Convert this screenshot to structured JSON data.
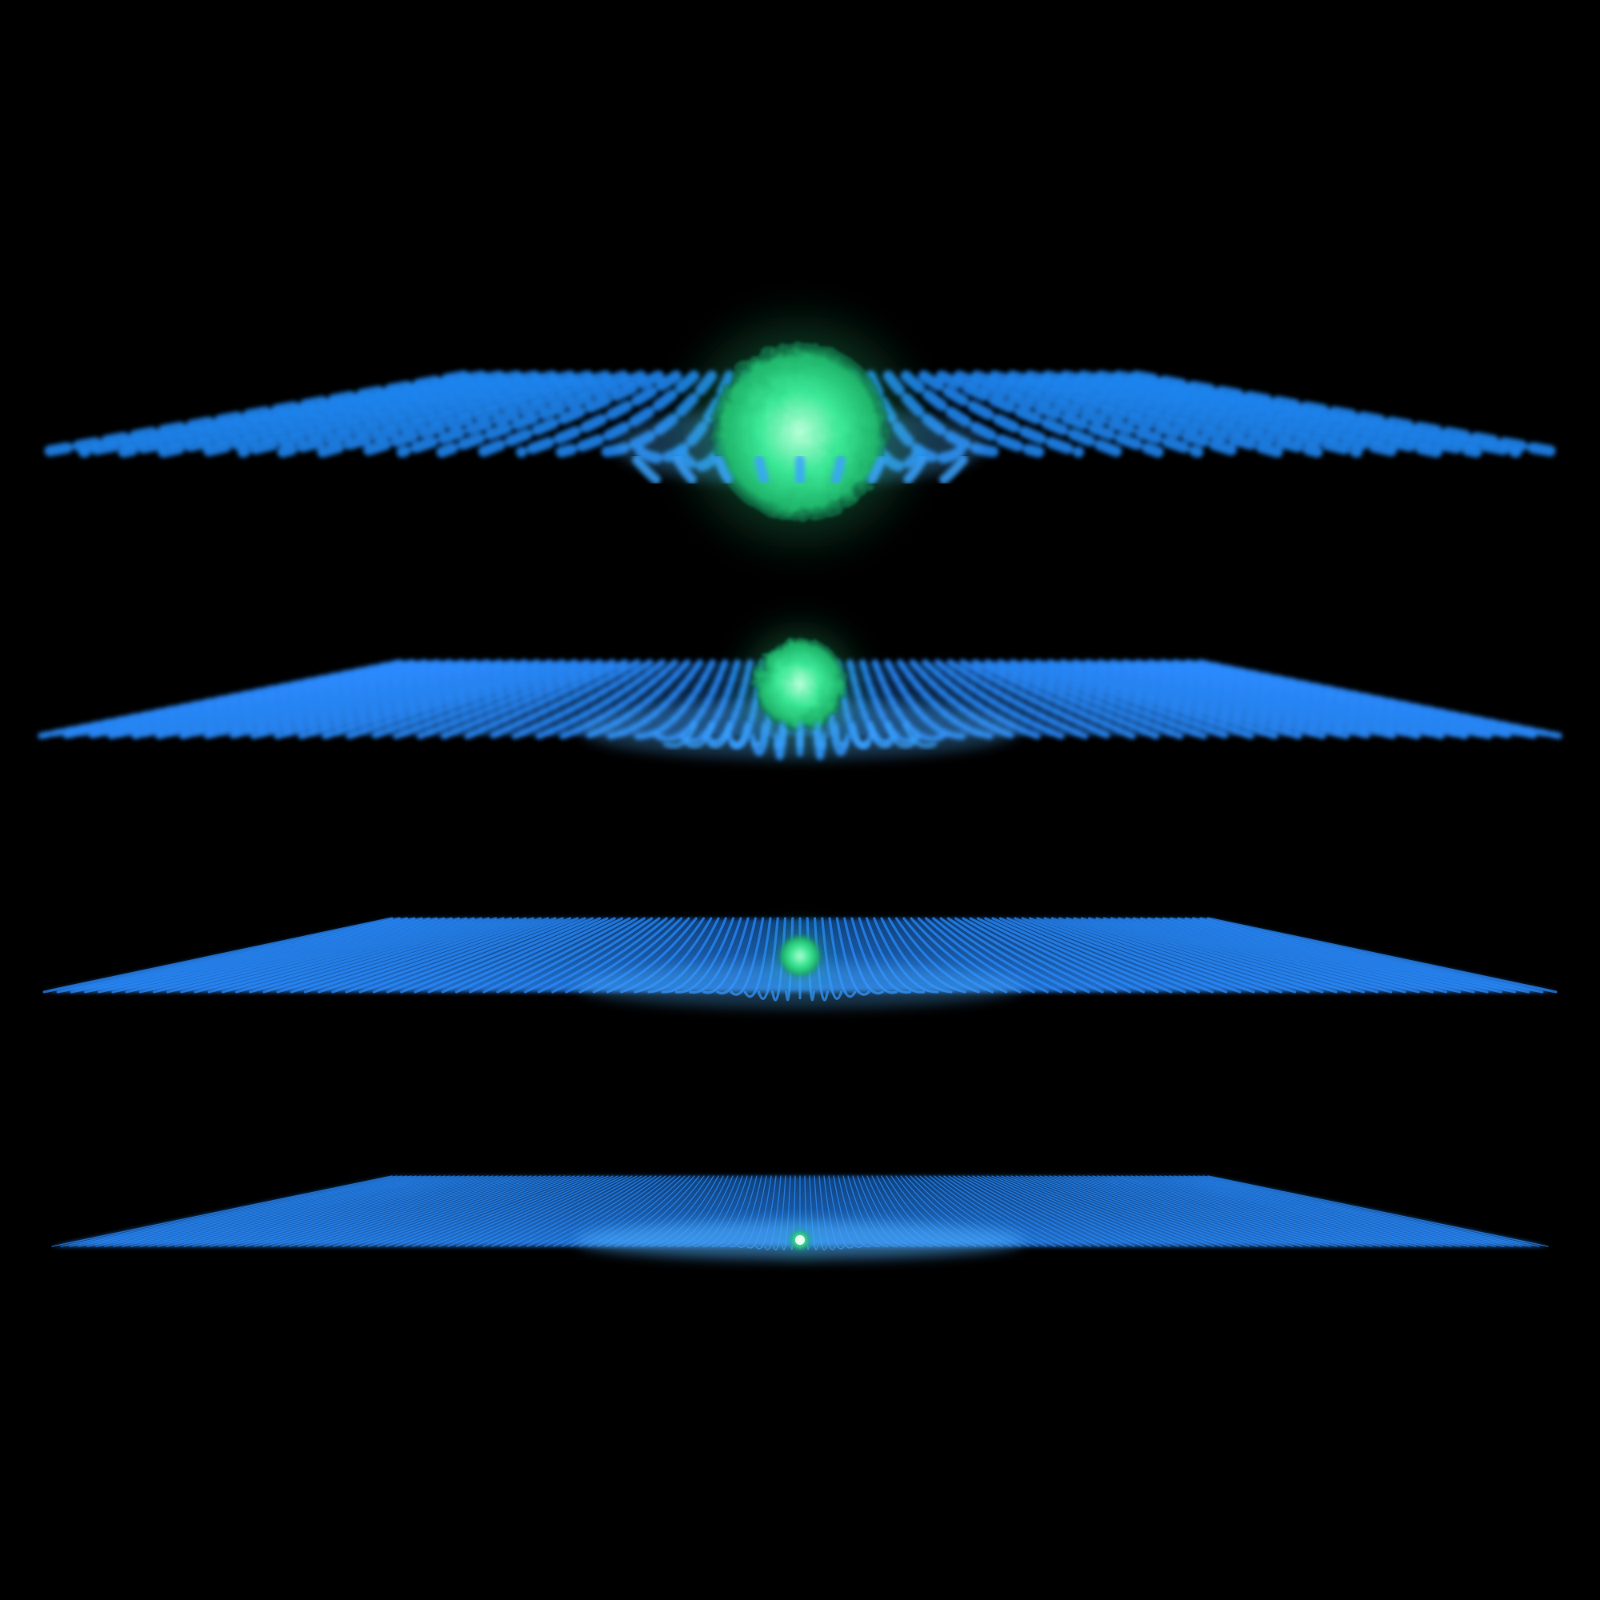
{
  "scene": {
    "background": "#000000",
    "lattice_color": "#1e7fe6",
    "lattice_glow": "#4fb0ff",
    "particle_color": "#2fe08a",
    "particle_core": "#b8ffd8",
    "panels": [
      {
        "name": "panel-1",
        "particle_scale": 1.0,
        "lattice_density": 1
      },
      {
        "name": "panel-2",
        "particle_scale": 0.55,
        "lattice_density": 2
      },
      {
        "name": "panel-3",
        "particle_scale": 0.25,
        "lattice_density": 4
      },
      {
        "name": "panel-4",
        "particle_scale": 0.1,
        "lattice_density": 8
      }
    ]
  }
}
